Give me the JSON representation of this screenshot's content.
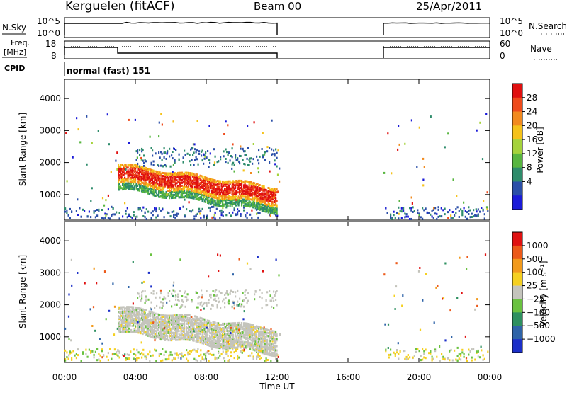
{
  "header": {
    "station": "Kerguelen (fitACF)",
    "beam": "Beam 00",
    "date": "25/Apr/2011"
  },
  "noise_panel": {
    "left_label": "N.Sky",
    "right_label": "N.Search",
    "left_ticks": [
      "10^5",
      "10^0"
    ],
    "right_ticks": [
      "10^5",
      "10^0"
    ],
    "right_legend_style": "dotted"
  },
  "freq_panel": {
    "left_label_line1": "Freq.",
    "left_label_line2": "[MHz]",
    "right_label": "Nave",
    "left_ticks": [
      "18",
      "8"
    ],
    "right_ticks": [
      "60",
      "0"
    ],
    "right_legend_style": "dotted"
  },
  "cpid": {
    "label": "CPID",
    "value": "normal (fast) 151"
  },
  "chart_data": [
    {
      "type": "heatmap",
      "name": "power",
      "ylabel": "Slant Range [km]",
      "yticks": [
        1000,
        2000,
        3000,
        4000
      ],
      "ylim": [
        200,
        4600
      ],
      "xlim": [
        0,
        24
      ],
      "colorbar_label": "Power [dB]",
      "colorbar_ticks": [
        "28",
        "24",
        "20",
        "16",
        "12",
        "8",
        "4"
      ],
      "colors": [
        "#1b1bd8",
        "#2b4fa8",
        "#2e8c6b",
        "#58b640",
        "#a5d33b",
        "#f5c21a",
        "#f28a1e",
        "#ee4b1c",
        "#e01010"
      ]
    },
    {
      "type": "heatmap",
      "name": "velocity",
      "ylabel": "Slant Range [km]",
      "yticks": [
        1000,
        2000,
        3000,
        4000
      ],
      "ylim": [
        200,
        4600
      ],
      "xlim": [
        0,
        24
      ],
      "colorbar_label": "Velocity [m s⁻¹]",
      "colorbar_ticks": [
        "1000",
        "500",
        "100",
        "25",
        "−25",
        "−100",
        "−500",
        "−1000"
      ],
      "colors": [
        "#1b2fc8",
        "#2f64a8",
        "#2e9060",
        "#6ac240",
        "#c4c4bc",
        "#f5d020",
        "#f29a1c",
        "#ec5a1a",
        "#e01212"
      ]
    }
  ],
  "x_axis": {
    "ticks": [
      "00:00",
      "04:00",
      "08:00",
      "12:00",
      "16:00",
      "20:00",
      "00:00"
    ],
    "label": "Time UT"
  }
}
